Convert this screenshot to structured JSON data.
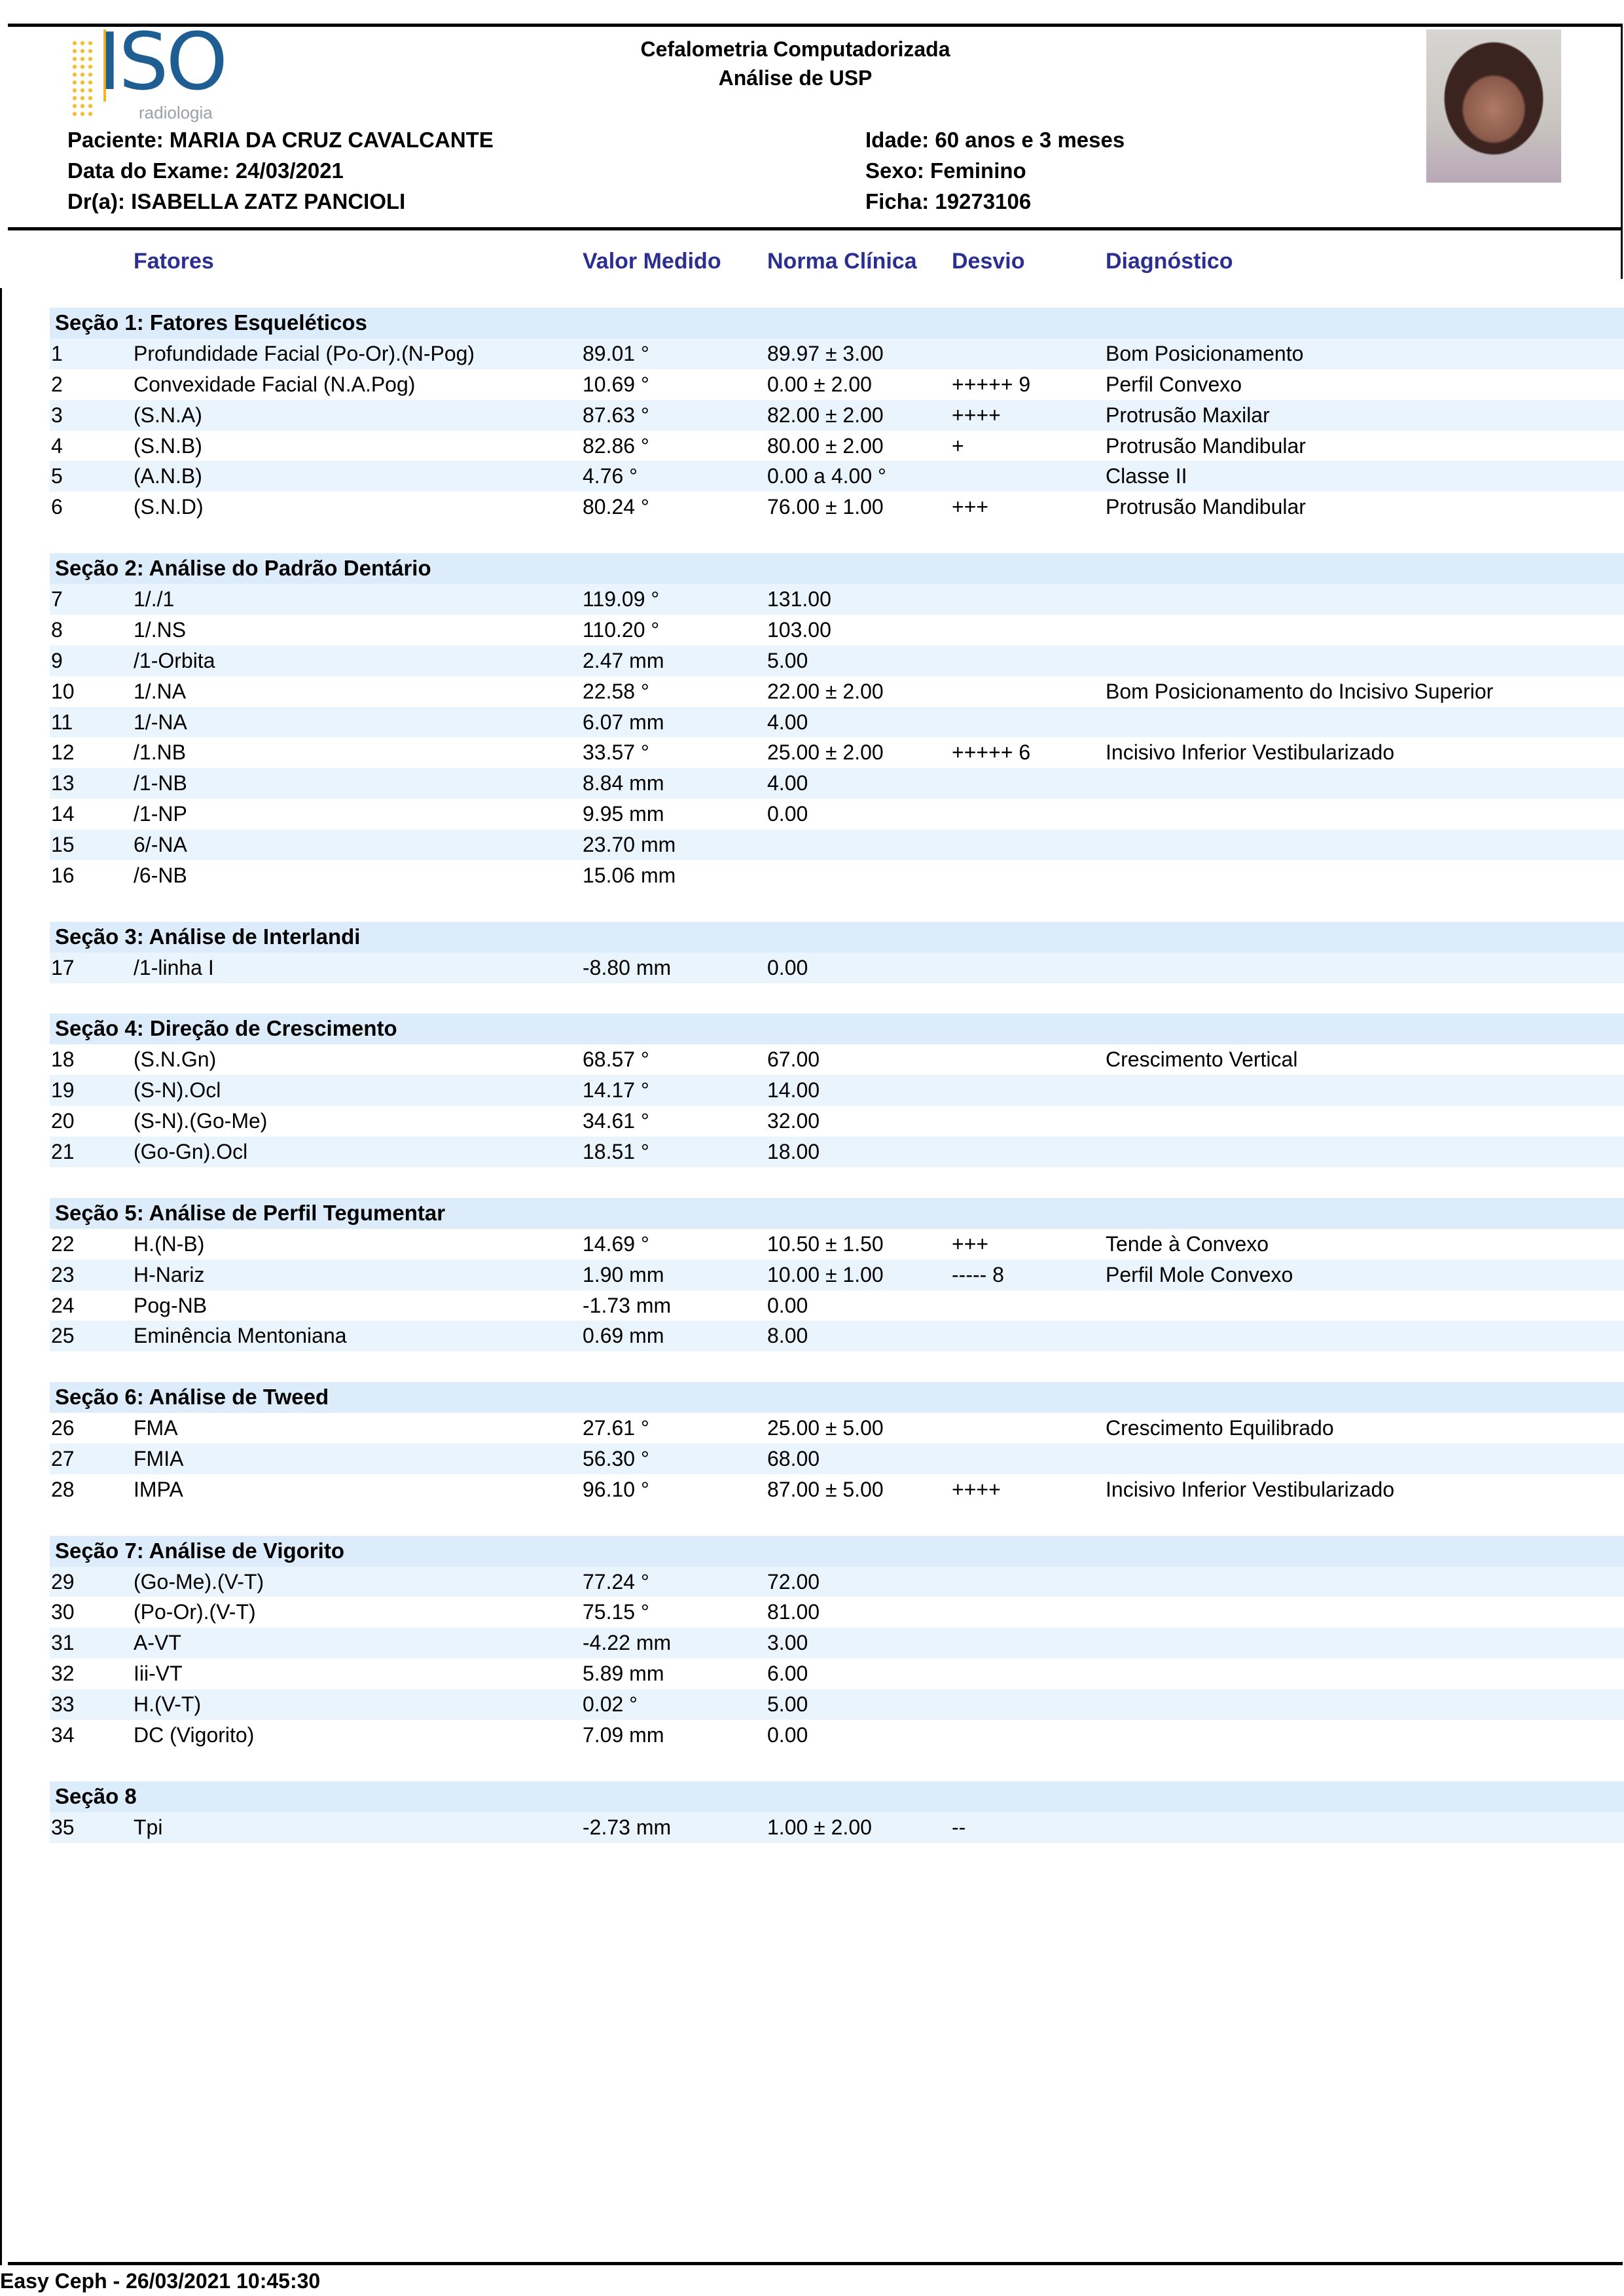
{
  "header": {
    "logo_text": "ISO",
    "logo_subtext": "radiologia",
    "title": "Cefalometria Computadorizada",
    "subtitle": "Análise de USP",
    "paciente": "Paciente: MARIA DA CRUZ CAVALCANTE",
    "data_exame": "Data do Exame: 24/03/2021",
    "doutor": "Dr(a): ISABELLA ZATZ PANCIOLI",
    "idade": "Idade: 60  anos e 3 meses",
    "sexo": "Sexo: Feminino",
    "ficha": "Ficha: 19273106"
  },
  "columns": {
    "fatores": "Fatores",
    "valor": "Valor Medido",
    "norma": "Norma Clínica",
    "desvio": "Desvio",
    "diagnostico": "Diagnóstico"
  },
  "colors": {
    "header_text": "#2b2f8f",
    "section_bg": "#dcecfb",
    "row_shade": "#eaf4fd"
  },
  "sections": [
    {
      "title": "Seção 1: Fatores Esqueléticos",
      "rows": [
        [
          "1",
          "Profundidade Facial (Po-Or).(N-Pog)",
          "89.01 °",
          "89.97 ± 3.00",
          "",
          "Bom Posicionamento"
        ],
        [
          "2",
          "Convexidade Facial (N.A.Pog)",
          "10.69 °",
          "0.00 ± 2.00",
          "+++++ 9",
          "Perfil Convexo"
        ],
        [
          "3",
          "(S.N.A)",
          "87.63 °",
          "82.00 ± 2.00",
          "++++",
          "Protrusão Maxilar"
        ],
        [
          "4",
          "(S.N.B)",
          "82.86 °",
          "80.00 ± 2.00",
          "+",
          "Protrusão Mandibular"
        ],
        [
          "5",
          "(A.N.B)",
          "4.76 °",
          "0.00 a 4.00 °",
          "",
          "Classe II"
        ],
        [
          "6",
          "(S.N.D)",
          "80.24 °",
          "76.00 ± 1.00",
          "+++",
          "Protrusão Mandibular"
        ]
      ]
    },
    {
      "title": "Seção 2: Análise do Padrão Dentário",
      "rows": [
        [
          "7",
          "1/./1",
          "119.09 °",
          "131.00",
          "",
          ""
        ],
        [
          "8",
          "1/.NS",
          "110.20 °",
          "103.00",
          "",
          ""
        ],
        [
          "9",
          "/1-Orbita",
          "2.47 mm",
          "5.00",
          "",
          ""
        ],
        [
          "10",
          "1/.NA",
          "22.58 °",
          "22.00 ± 2.00",
          "",
          "Bom Posicionamento do Incisivo Superior"
        ],
        [
          "11",
          "1/-NA",
          "6.07 mm",
          "4.00",
          "",
          ""
        ],
        [
          "12",
          "/1.NB",
          "33.57 °",
          "25.00 ± 2.00",
          "+++++ 6",
          "Incisivo Inferior Vestibularizado"
        ],
        [
          "13",
          "/1-NB",
          "8.84 mm",
          "4.00",
          "",
          ""
        ],
        [
          "14",
          "/1-NP",
          "9.95 mm",
          "0.00",
          "",
          ""
        ],
        [
          "15",
          "6/-NA",
          "23.70 mm",
          "",
          "",
          ""
        ],
        [
          "16",
          "/6-NB",
          "15.06 mm",
          "",
          "",
          ""
        ]
      ]
    },
    {
      "title": "Seção 3: Análise de Interlandi",
      "rows": [
        [
          "17",
          "/1-linha I",
          "-8.80 mm",
          "0.00",
          "",
          ""
        ]
      ]
    },
    {
      "title": "Seção 4: Direção de Crescimento",
      "rows": [
        [
          "18",
          "(S.N.Gn)",
          "68.57 °",
          "67.00",
          "",
          "Crescimento Vertical"
        ],
        [
          "19",
          "(S-N).Ocl",
          "14.17 °",
          "14.00",
          "",
          ""
        ],
        [
          "20",
          "(S-N).(Go-Me)",
          "34.61 °",
          "32.00",
          "",
          ""
        ],
        [
          "21",
          "(Go-Gn).Ocl",
          "18.51 °",
          "18.00",
          "",
          ""
        ]
      ]
    },
    {
      "title": "Seção 5: Análise de Perfil Tegumentar",
      "rows": [
        [
          "22",
          "H.(N-B)",
          "14.69 °",
          "10.50 ± 1.50",
          "+++",
          "Tende à Convexo"
        ],
        [
          "23",
          "H-Nariz",
          "1.90 mm",
          "10.00 ± 1.00",
          "----- 8",
          "Perfil Mole Convexo"
        ],
        [
          "24",
          "Pog-NB",
          "-1.73 mm",
          "0.00",
          "",
          ""
        ],
        [
          "25",
          "Eminência Mentoniana",
          "0.69 mm",
          "8.00",
          "",
          ""
        ]
      ]
    },
    {
      "title": "Seção 6: Análise de Tweed",
      "rows": [
        [
          "26",
          "FMA",
          "27.61 °",
          "25.00 ± 5.00",
          "",
          "Crescimento Equilibrado"
        ],
        [
          "27",
          "FMIA",
          "56.30 °",
          "68.00",
          "",
          ""
        ],
        [
          "28",
          "IMPA",
          "96.10 °",
          "87.00 ± 5.00",
          "++++",
          "Incisivo Inferior Vestibularizado"
        ]
      ]
    },
    {
      "title": "Seção 7: Análise de Vigorito",
      "rows": [
        [
          "29",
          "(Go-Me).(V-T)",
          "77.24 °",
          "72.00",
          "",
          ""
        ],
        [
          "30",
          "(Po-Or).(V-T)",
          "75.15 °",
          "81.00",
          "",
          ""
        ],
        [
          "31",
          "A-VT",
          "-4.22 mm",
          "3.00",
          "",
          ""
        ],
        [
          "32",
          "Iii-VT",
          "5.89 mm",
          "6.00",
          "",
          ""
        ],
        [
          "33",
          "H.(V-T)",
          "0.02 °",
          "5.00",
          "",
          ""
        ],
        [
          "34",
          "DC (Vigorito)",
          "7.09 mm",
          "0.00",
          "",
          ""
        ]
      ]
    },
    {
      "title": "Seção 8",
      "rows": [
        [
          "35",
          "Tpi",
          "-2.73 mm",
          "1.00 ± 2.00",
          "--",
          ""
        ]
      ]
    }
  ],
  "footer": "Easy Ceph - 26/03/2021 10:45:30"
}
